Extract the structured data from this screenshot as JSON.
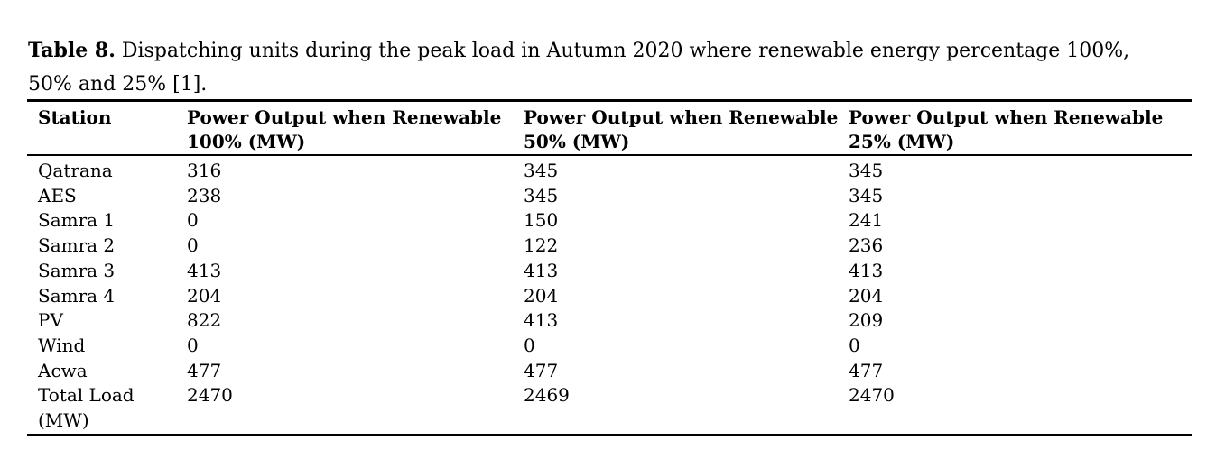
{
  "caption": {
    "label": "Table 8.",
    "text": " Dispatching units during the peak load in Autumn 2020 where renewable energy percentage 100%, 50% and 25% [1]."
  },
  "table": {
    "columns": [
      {
        "label": "Station"
      },
      {
        "label": "Power Output when Renewable\n100% (MW)"
      },
      {
        "label": "Power Output when Renewable\n50% (MW)"
      },
      {
        "label": "Power Output when Renewable\n25% (MW)"
      }
    ],
    "rows": [
      {
        "station": "Qatrana",
        "p100": "316",
        "p50": "345",
        "p25": "345"
      },
      {
        "station": "AES",
        "p100": "238",
        "p50": "345",
        "p25": "345"
      },
      {
        "station": "Samra 1",
        "p100": "0",
        "p50": "150",
        "p25": "241"
      },
      {
        "station": "Samra 2",
        "p100": "0",
        "p50": "122",
        "p25": "236"
      },
      {
        "station": "Samra 3",
        "p100": "413",
        "p50": "413",
        "p25": "413"
      },
      {
        "station": "Samra 4",
        "p100": "204",
        "p50": "204",
        "p25": "204"
      },
      {
        "station": "PV",
        "p100": "822",
        "p50": "413",
        "p25": "209"
      },
      {
        "station": "Wind",
        "p100": "0",
        "p50": "0",
        "p25": "0"
      },
      {
        "station": "Acwa",
        "p100": "477",
        "p50": "477",
        "p25": "477"
      },
      {
        "station": "Total Load\n(MW)",
        "p100": "2470",
        "p50": "2469",
        "p25": "2470"
      }
    ]
  }
}
